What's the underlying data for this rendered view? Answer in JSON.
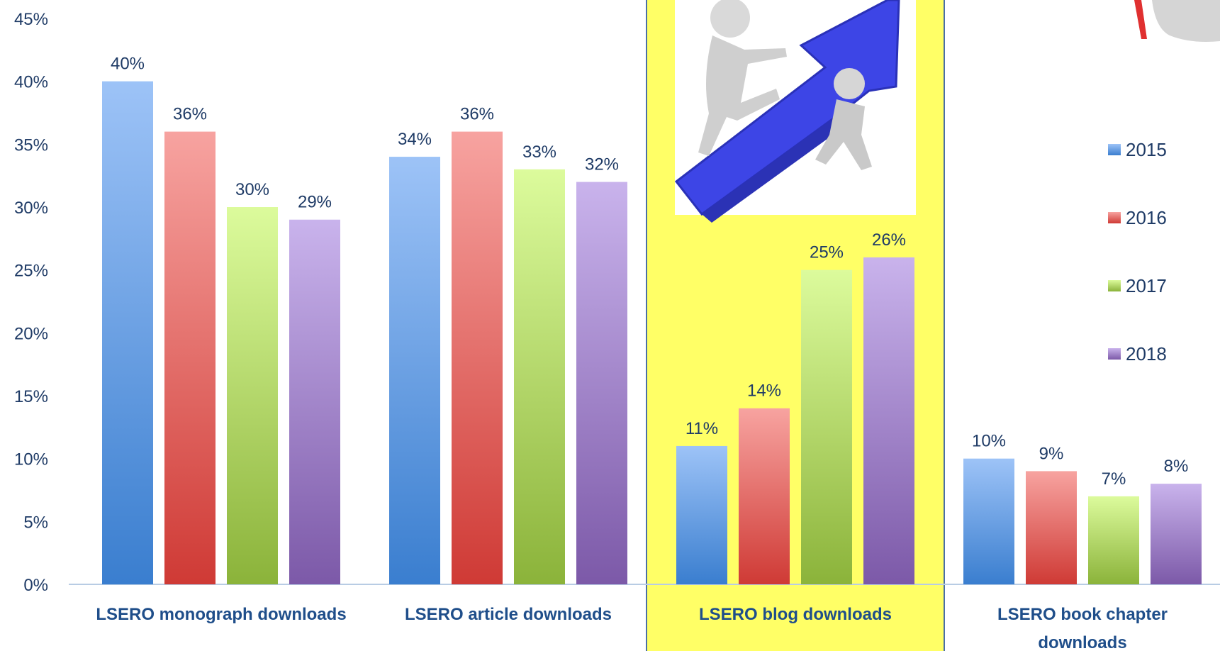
{
  "chart_data": {
    "type": "bar",
    "title": "",
    "xlabel": "",
    "ylabel": "",
    "ylim": [
      0,
      45
    ],
    "yticks": [
      "0%",
      "5%",
      "10%",
      "15%",
      "20%",
      "25%",
      "30%",
      "35%",
      "40%",
      "45%"
    ],
    "value_suffix": "%",
    "grid": false,
    "legend_position": "right",
    "highlighted_category": "LSERO blog downloads",
    "highlight_color": "#ffff66",
    "categories": [
      [
        "LSERO monograph downloads"
      ],
      [
        "LSERO article downloads"
      ],
      [
        "LSERO blog downloads"
      ],
      [
        "LSERO book chapter",
        "downloads"
      ]
    ],
    "series": [
      {
        "name": "2015",
        "color_top": "#9dc3f7",
        "color_bottom": "#3a7ecf",
        "values": [
          40,
          34,
          11,
          10
        ]
      },
      {
        "name": "2016",
        "color_top": "#f7a3a0",
        "color_bottom": "#cf3a35",
        "values": [
          36,
          36,
          14,
          9
        ]
      },
      {
        "name": "2017",
        "color_top": "#dcfb9c",
        "color_bottom": "#8bb33a",
        "values": [
          30,
          33,
          25,
          7
        ]
      },
      {
        "name": "2018",
        "color_top": "#c9b3ec",
        "color_bottom": "#7c59a8",
        "values": [
          29,
          32,
          26,
          8
        ]
      }
    ]
  }
}
